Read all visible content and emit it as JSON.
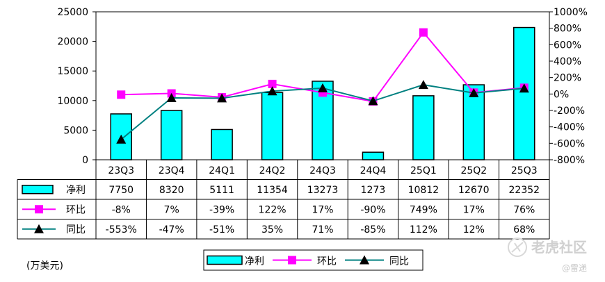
{
  "chart_data": {
    "type": "bar",
    "categories": [
      "23Q3",
      "23Q4",
      "24Q1",
      "24Q2",
      "24Q3",
      "24Q4",
      "25Q1",
      "25Q2",
      "25Q3"
    ],
    "unit_label": "(万美元)",
    "y_left": {
      "ticks": [
        "25000",
        "20000",
        "15000",
        "10000",
        "5000",
        "0"
      ],
      "ylim": [
        0,
        25000
      ]
    },
    "y_right": {
      "ticks": [
        "1000%",
        "800%",
        "600%",
        "400%",
        "200%",
        "0%",
        "-200%",
        "-400%",
        "-600%",
        "-800%"
      ],
      "ylim": [
        -800,
        1000
      ]
    },
    "series": [
      {
        "name": "净利",
        "kind": "bar",
        "axis": "left",
        "color": "#00FFFF",
        "values": [
          7750,
          8320,
          5111,
          11354,
          13273,
          1273,
          10812,
          12670,
          22352
        ],
        "labels": [
          "7750",
          "8320",
          "5111",
          "11354",
          "13273",
          "1273",
          "10812",
          "12670",
          "22352"
        ]
      },
      {
        "name": "环比",
        "kind": "line",
        "axis": "right",
        "color": "#FF00FF",
        "marker": "square",
        "values": [
          -8,
          7,
          -39,
          122,
          17,
          -90,
          749,
          17,
          76
        ],
        "labels": [
          "-8%",
          "7%",
          "-39%",
          "122%",
          "17%",
          "-90%",
          "749%",
          "17%",
          "76%"
        ]
      },
      {
        "name": "同比",
        "kind": "line",
        "axis": "right",
        "color": "#008080",
        "marker": "triangle",
        "values": [
          -553,
          -47,
          -51,
          35,
          71,
          -85,
          112,
          12,
          68
        ],
        "labels": [
          "-553%",
          "-47%",
          "-51%",
          "35%",
          "71%",
          "-85%",
          "112%",
          "12%",
          "68%"
        ]
      }
    ],
    "legend": {
      "items": [
        "净利",
        "环比",
        "同比"
      ],
      "placement": "bottom-center"
    },
    "grid": false
  },
  "watermark": {
    "text": "老虎社区",
    "sub": "@雷递"
  }
}
